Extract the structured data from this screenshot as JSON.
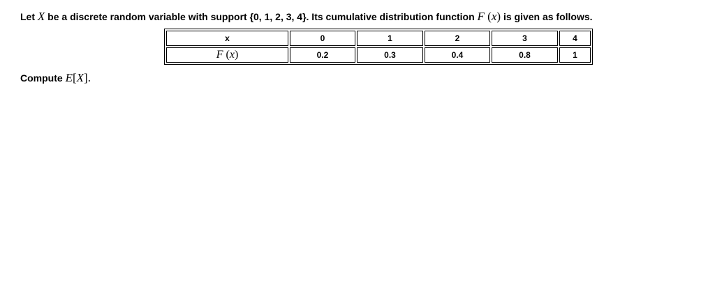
{
  "intro": {
    "part1": "Let ",
    "var_X": "X",
    "part2": " be a discrete random variable with support {0, 1, 2, 3, 4}. Its cumulative distribution function ",
    "func_F": "F",
    "lparen": "(",
    "var_x": "x",
    "rparen": ")",
    "part3": " is given as follows."
  },
  "table": {
    "header_label": "x",
    "row_label_F": "F",
    "row_label_lparen": "(",
    "row_label_x": "x",
    "row_label_rparen": ")",
    "x_values": [
      "0",
      "1",
      "2",
      "3",
      "4"
    ],
    "F_values": [
      "0.2",
      "0.3",
      "0.4",
      "0.8",
      "1"
    ]
  },
  "compute": {
    "label": "Compute ",
    "expr_E": "E",
    "lbracket": "[",
    "var_X": "X",
    "rbracket": "]",
    "period": "."
  }
}
